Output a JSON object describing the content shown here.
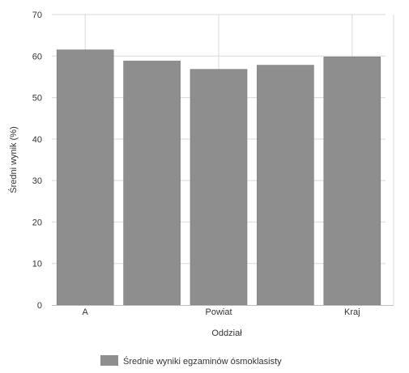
{
  "chart_data": {
    "type": "bar",
    "title": "",
    "xlabel": "Oddział",
    "ylabel": "Średni wynik (%)",
    "ylim": [
      0,
      70
    ],
    "yticks": [
      0,
      10,
      20,
      30,
      40,
      50,
      60,
      70
    ],
    "categories": [
      "A",
      "",
      "Powiat",
      "",
      "Kraj"
    ],
    "series": [
      {
        "name": "Średnie wyniki egzaminów ósmoklasisty",
        "values": [
          61.5,
          58.8,
          56.8,
          57.8,
          59.8
        ]
      }
    ],
    "grid": true,
    "legend_position": "bottom-center",
    "colors": {
      "bar": "#8e8e8e",
      "bar_edge": "#7a7a7a",
      "grid": "#d8d8d8",
      "axis": "#bdbdbd"
    }
  }
}
